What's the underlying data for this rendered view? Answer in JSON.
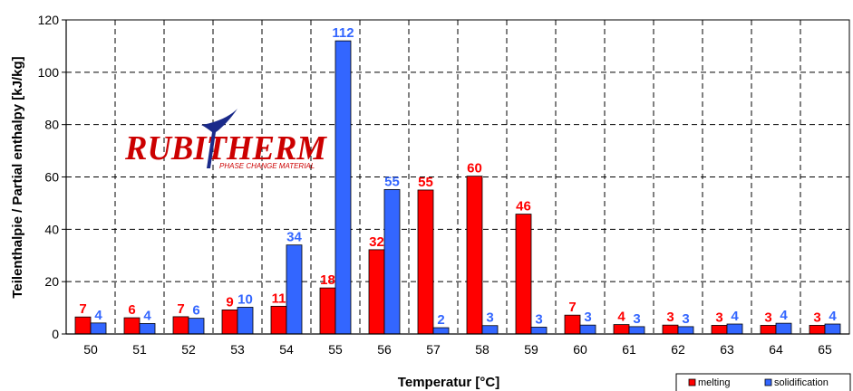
{
  "chart_data": {
    "type": "bar",
    "xlabel": "Temperatur [°C]",
    "ylabel": "Teilenthalpie / Partial enthalpy [kJ/kg]",
    "categories": [
      "50",
      "51",
      "52",
      "53",
      "54",
      "55",
      "56",
      "57",
      "58",
      "59",
      "60",
      "61",
      "62",
      "63",
      "64",
      "65"
    ],
    "ylim": [
      0,
      120
    ],
    "yticks": [
      0,
      20,
      40,
      60,
      80,
      100,
      120
    ],
    "grid": true,
    "legend_position": "bottom-right",
    "series": [
      {
        "name": "melting",
        "color": "#ff0000",
        "label_color": "#ff0000",
        "values": [
          6.5,
          6.2,
          6.6,
          9.2,
          10.6,
          17.6,
          32.2,
          55,
          60.3,
          45.8,
          7.2,
          3.6,
          3.4,
          3.3,
          3.3,
          3.3
        ],
        "labels": [
          "7",
          "6",
          "7",
          "9",
          "11",
          "18",
          "32",
          "55",
          "60",
          "46",
          "7",
          "4",
          "3",
          "3",
          "3",
          "3"
        ]
      },
      {
        "name": "solidification",
        "color": "#3366ff",
        "label_color": "#3366ff",
        "values": [
          4.2,
          4.0,
          6.0,
          10.2,
          34,
          112,
          55.2,
          2.4,
          3.2,
          2.6,
          3.4,
          2.8,
          2.8,
          3.8,
          4.1,
          3.8
        ],
        "labels": [
          "4",
          "4",
          "6",
          "10",
          "34",
          "112",
          "55",
          "2",
          "3",
          "3",
          "3",
          "3",
          "3",
          "4",
          "4",
          "4"
        ]
      }
    ]
  },
  "logo": {
    "brand": "RUBITHERM",
    "tagline": "PHASE CHANGE MATERIAL",
    "color": "#cc0000",
    "accent": "#1a2a8a"
  }
}
